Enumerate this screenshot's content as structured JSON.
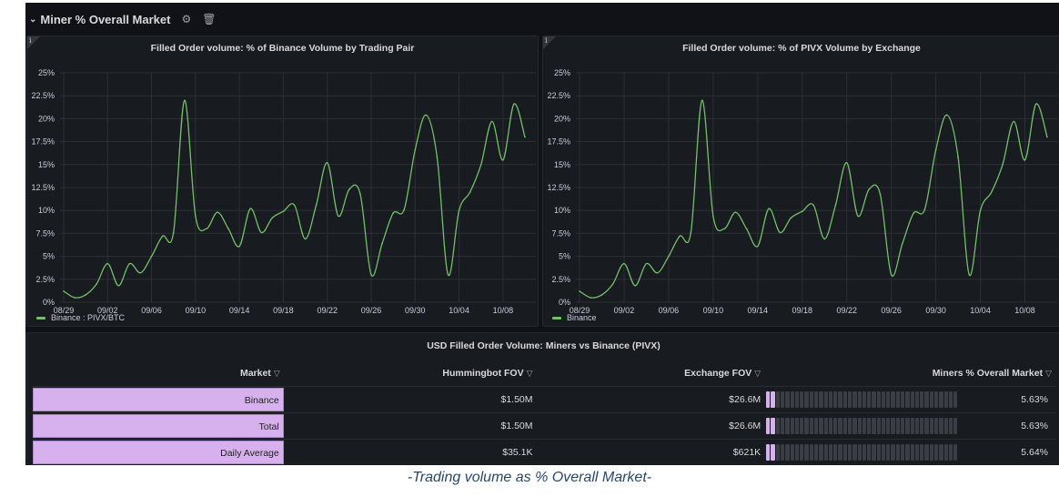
{
  "row": {
    "title": "Miner % Overall Market",
    "chevron": "⌄",
    "gear_icon": "⚙",
    "trash_icon": "🗑"
  },
  "panels": {
    "left": {
      "title": "Filled Order volume: % of Binance Volume by Trading Pair",
      "legend": "Binance : PIVX/BTC",
      "info": "i"
    },
    "right": {
      "title": "Filled Order volume: % of PIVX Volume by Exchange",
      "legend": "Binance",
      "info": "i"
    },
    "table": {
      "title": "USD Filled Order Volume: Miners vs Binance (PIVX)",
      "headers": {
        "market": "Market",
        "hummingbot": "Hummingbot FOV",
        "exchange": "Exchange FOV",
        "miners": "Miners % Overall Market"
      },
      "rows": [
        {
          "market": "Binance",
          "hummingbot": "$1.50M",
          "exchange": "$26.6M",
          "miners": "5.63%",
          "fraction": 0.0563
        },
        {
          "market": "Total",
          "hummingbot": "$1.50M",
          "exchange": "$26.6M",
          "miners": "5.63%",
          "fraction": 0.0563
        },
        {
          "market": "Daily Average",
          "hummingbot": "$35.1K",
          "exchange": "$621K",
          "miners": "5.64%",
          "fraction": 0.0564
        }
      ]
    }
  },
  "caption": "-Trading volume as % Overall Market-",
  "colors": {
    "line": "#73bf69",
    "bar": "#d7b1ed",
    "background": "#111217"
  },
  "chart_data": [
    {
      "type": "line",
      "title": "Filled Order volume: % of Binance Volume by Trading Pair",
      "ylim": [
        0,
        25
      ],
      "y_ticks": [
        "0%",
        "2.5%",
        "5%",
        "7.5%",
        "10%",
        "12.5%",
        "15%",
        "17.5%",
        "20%",
        "22.5%",
        "25%"
      ],
      "x_ticks": [
        "08/29",
        "09/02",
        "09/06",
        "09/10",
        "09/14",
        "09/18",
        "09/22",
        "09/26",
        "09/30",
        "10/04",
        "10/08"
      ],
      "grid": true,
      "legend": "bottom-left",
      "series": [
        {
          "name": "Binance : PIVX/BTC",
          "color": "#73bf69",
          "values": [
            1.2,
            0.5,
            0.8,
            2.0,
            4.2,
            1.8,
            4.2,
            3.2,
            5.0,
            7.2,
            7.6,
            22.0,
            9.4,
            8.0,
            9.8,
            8.0,
            6.1,
            10.2,
            7.6,
            9.2,
            9.9,
            10.6,
            6.9,
            10.6,
            15.2,
            9.4,
            12.3,
            11.8,
            3.0,
            6.4,
            9.7,
            10.1,
            16.6,
            20.4,
            15.8,
            3.0,
            10.0,
            12.0,
            15.0,
            19.7,
            15.5,
            21.6,
            18.0
          ]
        }
      ]
    },
    {
      "type": "line",
      "title": "Filled Order volume: % of PIVX Volume by Exchange",
      "ylim": [
        0,
        25
      ],
      "y_ticks": [
        "0%",
        "2.5%",
        "5%",
        "7.5%",
        "10%",
        "12.5%",
        "15%",
        "17.5%",
        "20%",
        "22.5%",
        "25%"
      ],
      "x_ticks": [
        "08/29",
        "09/02",
        "09/06",
        "09/10",
        "09/14",
        "09/18",
        "09/22",
        "09/26",
        "09/30",
        "10/04",
        "10/08"
      ],
      "grid": true,
      "legend": "bottom-left",
      "series": [
        {
          "name": "Binance",
          "color": "#73bf69",
          "values": [
            1.2,
            0.5,
            0.8,
            2.0,
            4.2,
            1.8,
            4.2,
            3.2,
            5.0,
            7.2,
            7.6,
            22.0,
            9.4,
            8.0,
            9.8,
            8.0,
            6.1,
            10.2,
            7.6,
            9.2,
            9.9,
            10.6,
            6.9,
            10.6,
            15.2,
            9.4,
            12.3,
            11.8,
            3.0,
            6.4,
            9.7,
            10.1,
            16.6,
            20.4,
            15.8,
            3.0,
            10.0,
            12.0,
            15.0,
            19.7,
            15.5,
            21.6,
            18.0
          ]
        }
      ]
    }
  ]
}
